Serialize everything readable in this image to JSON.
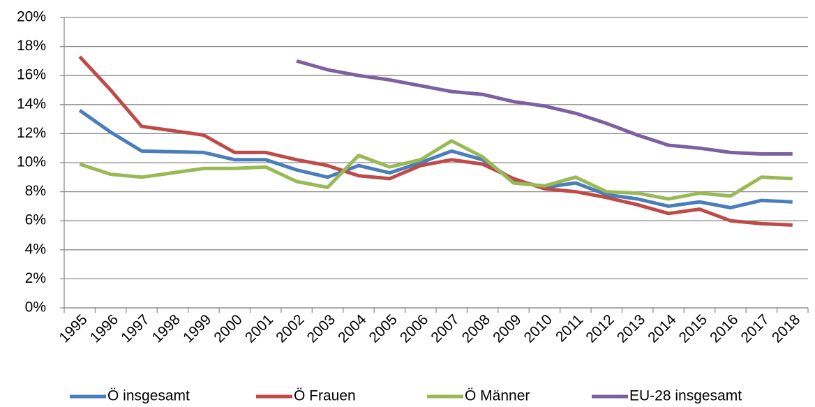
{
  "chart_data": {
    "type": "line",
    "categories": [
      "1995",
      "1996",
      "1997",
      "1998",
      "1999",
      "2000",
      "2001",
      "2002",
      "2003",
      "2004",
      "2005",
      "2006",
      "2007",
      "2008",
      "2009",
      "2010",
      "2011",
      "2012",
      "2013",
      "2014",
      "2015",
      "2016",
      "2017",
      "2018"
    ],
    "series": [
      {
        "name": "Ö insgesamt",
        "color": "#4a7ebb",
        "values": [
          13.6,
          12.1,
          10.8,
          10.75,
          10.7,
          10.2,
          10.2,
          9.5,
          9.0,
          9.8,
          9.3,
          10.0,
          10.8,
          10.2,
          8.8,
          8.3,
          8.6,
          7.8,
          7.5,
          7.0,
          7.3,
          6.9,
          7.4,
          7.3
        ]
      },
      {
        "name": "Ö Frauen",
        "color": "#be4b48",
        "values": [
          17.3,
          15.0,
          12.5,
          12.2,
          11.9,
          10.7,
          10.7,
          10.2,
          9.8,
          9.1,
          8.9,
          9.8,
          10.2,
          9.9,
          8.9,
          8.2,
          8.0,
          7.6,
          7.1,
          6.5,
          6.8,
          6.0,
          5.8,
          5.7
        ]
      },
      {
        "name": "Ö Männer",
        "color": "#98b954",
        "values": [
          9.9,
          9.2,
          9.0,
          9.3,
          9.6,
          9.6,
          9.7,
          8.7,
          8.3,
          10.5,
          9.7,
          10.2,
          11.5,
          10.4,
          8.6,
          8.4,
          9.0,
          8.0,
          7.9,
          7.5,
          7.9,
          7.7,
          9.0,
          8.9
        ]
      },
      {
        "name": "EU-28 insgesamt",
        "color": "#7d60a0",
        "values": [
          null,
          null,
          null,
          null,
          null,
          null,
          null,
          17.0,
          16.4,
          16.0,
          15.7,
          15.3,
          14.9,
          14.7,
          14.2,
          13.9,
          13.4,
          12.7,
          11.9,
          11.2,
          11.0,
          10.7,
          10.6,
          10.6
        ]
      }
    ],
    "ylim": [
      0,
      20
    ],
    "yticks": [
      {
        "value": 0,
        "label": "0%"
      },
      {
        "value": 2,
        "label": "2%"
      },
      {
        "value": 4,
        "label": "4%"
      },
      {
        "value": 6,
        "label": "6%"
      },
      {
        "value": 8,
        "label": "8%"
      },
      {
        "value": 10,
        "label": "10%"
      },
      {
        "value": 12,
        "label": "12%"
      },
      {
        "value": 14,
        "label": "14%"
      },
      {
        "value": 16,
        "label": "16%"
      },
      {
        "value": 18,
        "label": "18%"
      },
      {
        "value": 20,
        "label": "20%"
      }
    ],
    "grid": true,
    "legend": "bottom"
  }
}
